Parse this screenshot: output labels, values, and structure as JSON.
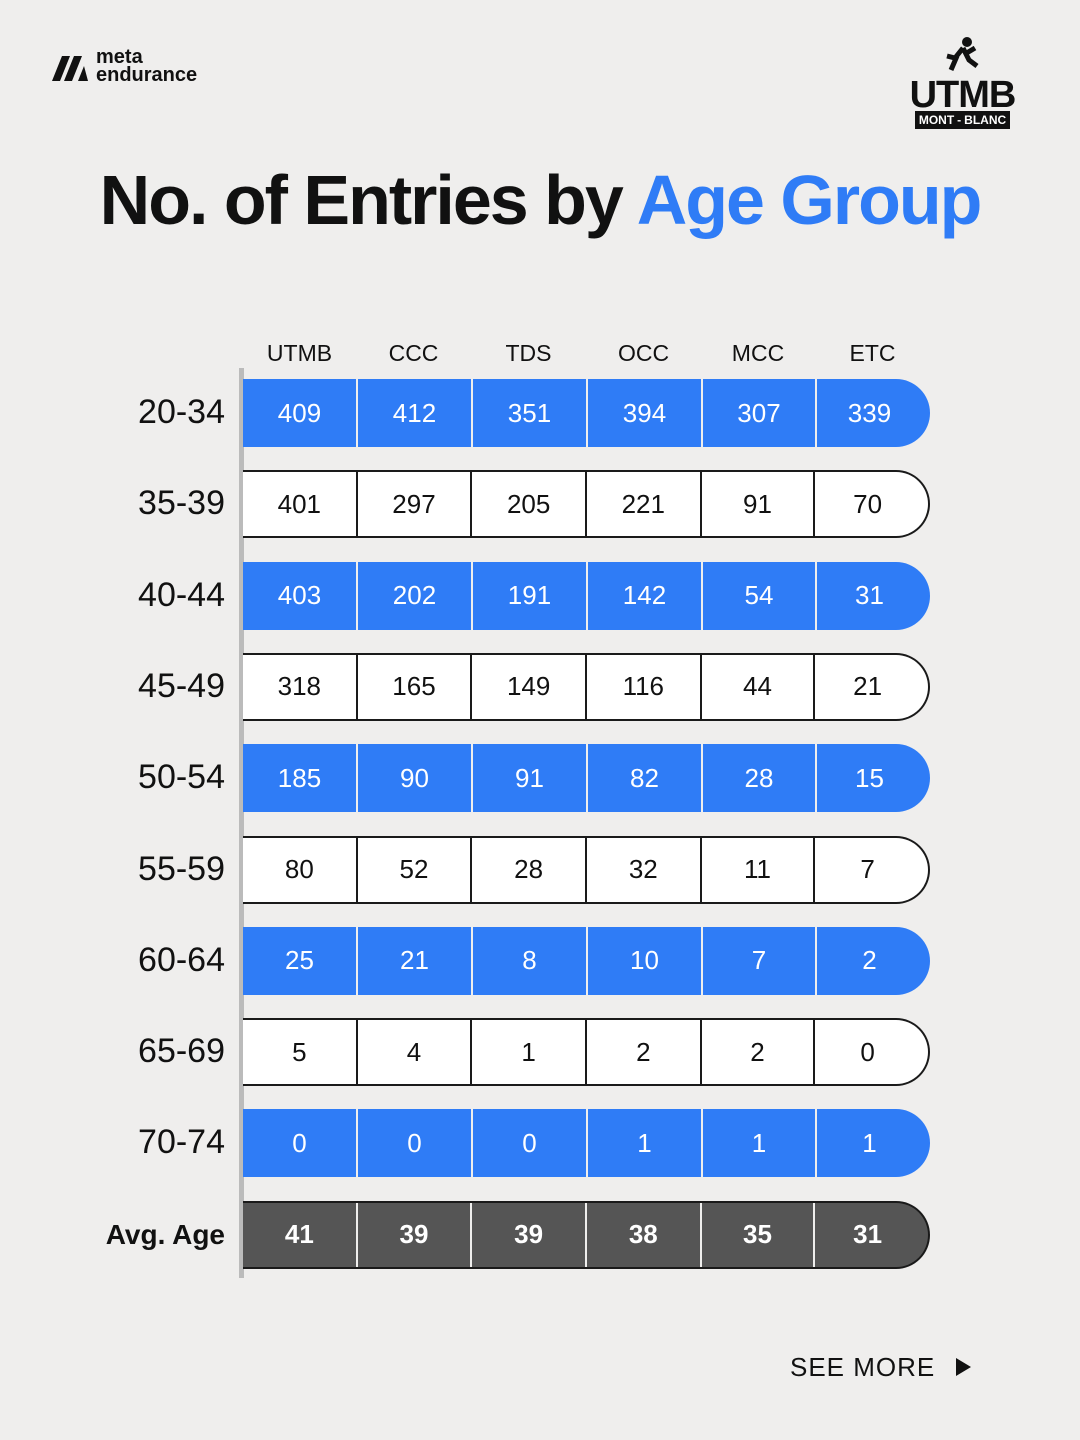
{
  "brand": {
    "line1": "meta",
    "line2": "endurance"
  },
  "race_logo": {
    "name": "UTMB",
    "left": "MONT",
    "right": "BLANC"
  },
  "title": {
    "part1": "No. of Entries by ",
    "part2": "Age Group"
  },
  "table": {
    "columns": [
      "UTMB",
      "CCC",
      "TDS",
      "OCC",
      "MCC",
      "ETC"
    ],
    "rows": [
      {
        "label": "20-34",
        "values": [
          409,
          412,
          351,
          394,
          307,
          339
        ]
      },
      {
        "label": "35-39",
        "values": [
          401,
          297,
          205,
          221,
          91,
          70
        ]
      },
      {
        "label": "40-44",
        "values": [
          403,
          202,
          191,
          142,
          54,
          31
        ]
      },
      {
        "label": "45-49",
        "values": [
          318,
          165,
          149,
          116,
          44,
          21
        ]
      },
      {
        "label": "50-54",
        "values": [
          185,
          90,
          91,
          82,
          28,
          15
        ]
      },
      {
        "label": "55-59",
        "values": [
          80,
          52,
          28,
          32,
          11,
          7
        ]
      },
      {
        "label": "60-64",
        "values": [
          25,
          21,
          8,
          10,
          7,
          2
        ]
      },
      {
        "label": "65-69",
        "values": [
          5,
          4,
          1,
          2,
          2,
          0
        ]
      },
      {
        "label": "70-74",
        "values": [
          0,
          0,
          0,
          1,
          1,
          1
        ]
      }
    ],
    "summary": {
      "label": "Avg. Age",
      "values": [
        41,
        39,
        39,
        38,
        35,
        31
      ]
    }
  },
  "footer": {
    "link": "SEE MORE"
  }
}
